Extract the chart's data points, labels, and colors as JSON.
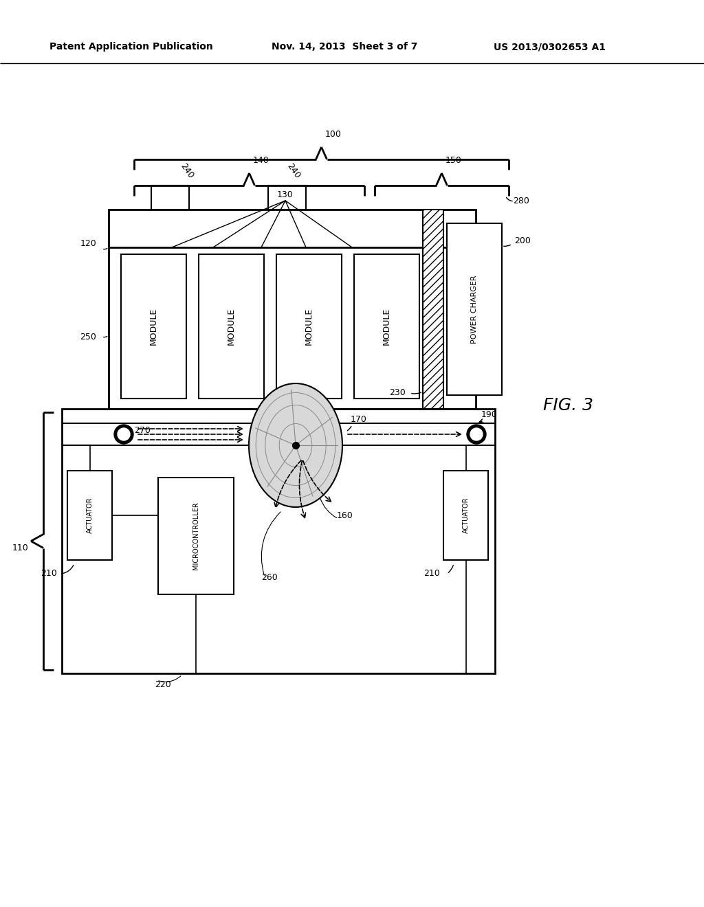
{
  "header_left": "Patent Application Publication",
  "header_mid": "Nov. 14, 2013  Sheet 3 of 7",
  "header_right": "US 2013/0302653 A1",
  "fig_label": "FIG. 3",
  "bg_color": "#ffffff"
}
